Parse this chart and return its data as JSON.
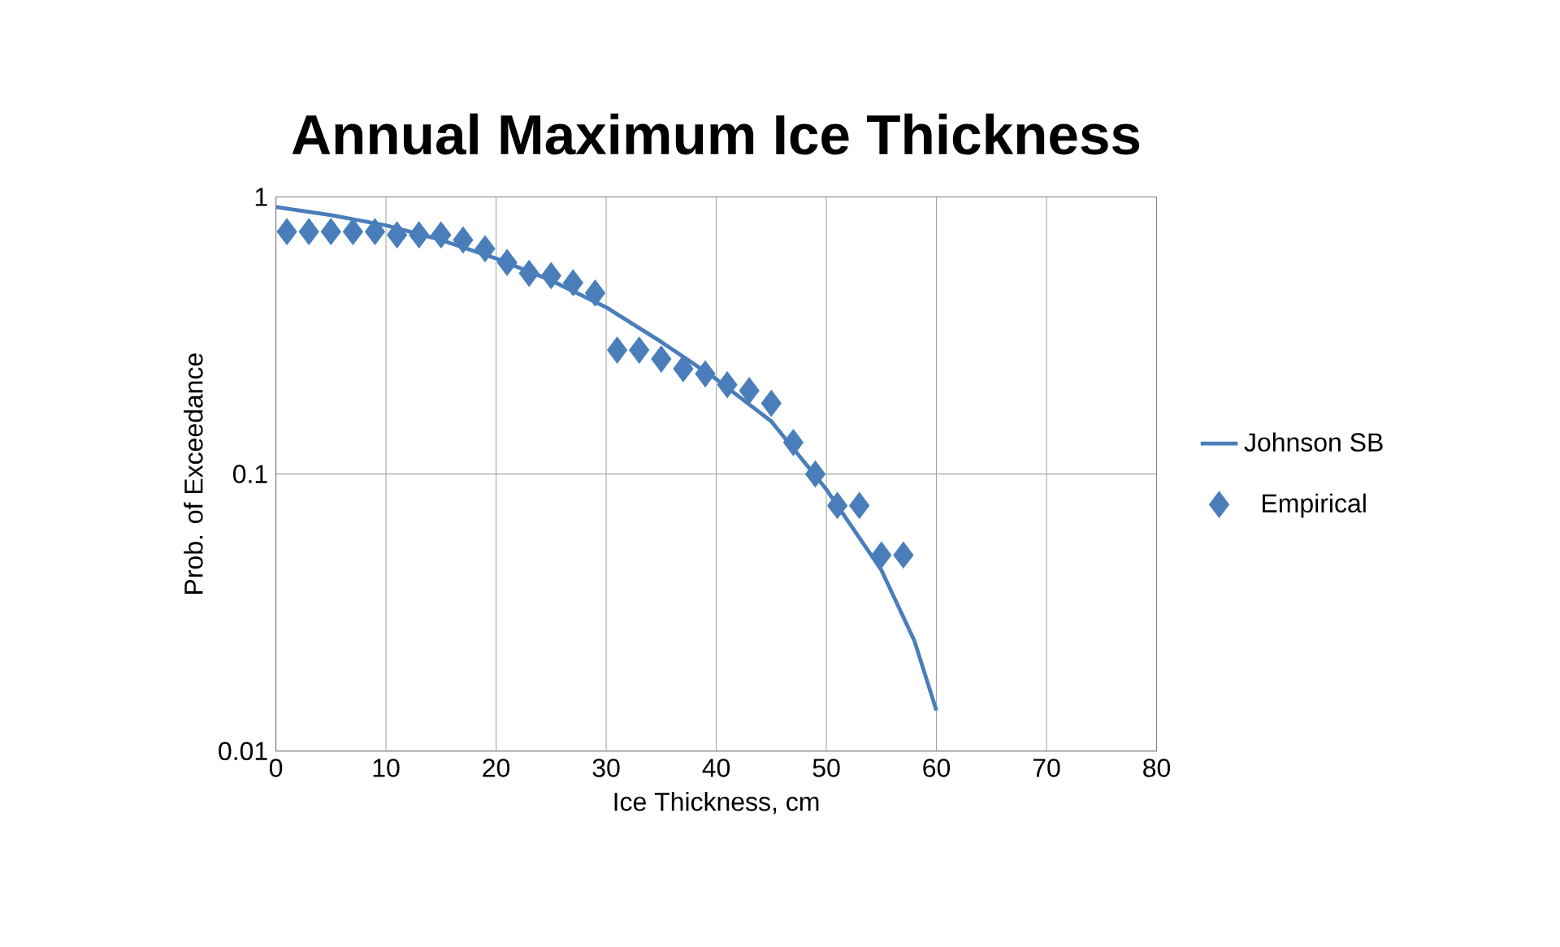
{
  "chart_data": {
    "type": "line",
    "title": "Annual Maximum Ice Thickness",
    "xlabel": "Ice Thickness, cm",
    "ylabel": "Prob. of Exceedance",
    "xlim": [
      0,
      80
    ],
    "xticks": [
      0,
      10,
      20,
      30,
      40,
      50,
      60,
      70,
      80
    ],
    "ylim": [
      0.01,
      1
    ],
    "yticks": [
      0.01,
      0.1,
      1
    ],
    "log": "y",
    "grid": true,
    "legend": "right",
    "series": [
      {
        "name": "Johnson SB",
        "color": "#4a7ebb",
        "marker": "none",
        "x": [
          0,
          5,
          10,
          15,
          20,
          25,
          30,
          35,
          40,
          45,
          50,
          55,
          58,
          60
        ],
        "values": [
          0.92,
          0.86,
          0.79,
          0.7,
          0.6,
          0.5,
          0.4,
          0.3,
          0.22,
          0.155,
          0.088,
          0.045,
          0.025,
          0.014
        ]
      },
      {
        "name": "Empirical",
        "type": "scatter",
        "color": "#4a7ebb",
        "marker": "diamond",
        "x": [
          1,
          3,
          5,
          7,
          9,
          11,
          13,
          15,
          17,
          19,
          21,
          23,
          25,
          27,
          29,
          31,
          33,
          35,
          37,
          39,
          41,
          43,
          45,
          47,
          49,
          51,
          53,
          55,
          57
        ],
        "values": [
          0.75,
          0.75,
          0.75,
          0.75,
          0.75,
          0.73,
          0.73,
          0.73,
          0.7,
          0.65,
          0.58,
          0.53,
          0.52,
          0.49,
          0.45,
          0.28,
          0.28,
          0.26,
          0.24,
          0.23,
          0.21,
          0.2,
          0.18,
          0.13,
          0.1,
          0.077,
          0.077,
          0.051,
          0.051
        ]
      }
    ]
  }
}
